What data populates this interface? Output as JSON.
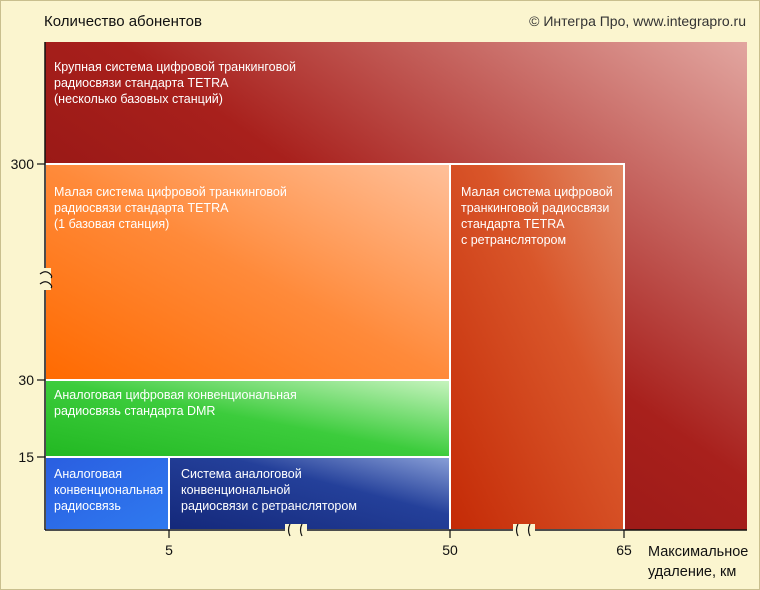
{
  "header": {
    "title": "Количество абонентов",
    "copyright": "© Интегра Про, www.integrapro.ru"
  },
  "colors": {
    "background": "#fbf5cf",
    "large_tetra": "#9e1212",
    "small_tetra": "#ff7a20",
    "tetra_repeater": "#cc3a10",
    "dmr": "#33c233",
    "analog_conventional": "#2b60d8",
    "analog_repeater": "#1e3590"
  },
  "chart_data": {
    "type": "area",
    "title": "Количество абонентов",
    "xlabel": "Максимальное удаление, км",
    "ylabel": "Количество абонентов",
    "x_ticks": [
      "5",
      "50",
      "65"
    ],
    "y_ticks": [
      "15",
      "30",
      "300"
    ],
    "axis_breaks": {
      "x": [
        "5-50",
        "50-65"
      ],
      "y": [
        "30-300"
      ]
    },
    "regions": [
      {
        "name": "large_tetra",
        "x_range": [
          0,
          null
        ],
        "y_range": [
          0,
          null
        ],
        "lines": [
          "Крупная система цифровой транкинговой",
          "радиосвязи стандарта TETRA",
          "(несколько базовых станций)"
        ]
      },
      {
        "name": "small_tetra",
        "x_range": [
          0,
          50
        ],
        "y_range": [
          30,
          300
        ],
        "lines": [
          "Малая система цифровой транкинговой",
          "радиосвязи стандарта TETRA",
          "(1 базовая станция)"
        ]
      },
      {
        "name": "tetra_repeater",
        "x_range": [
          50,
          65
        ],
        "y_range": [
          0,
          300
        ],
        "lines": [
          "Малая система цифровой",
          "транкинговой радиосвязи",
          "стандарта TETRA",
          "с ретранслятором"
        ]
      },
      {
        "name": "dmr",
        "x_range": [
          0,
          50
        ],
        "y_range": [
          15,
          30
        ],
        "lines": [
          "Аналоговая цифровая конвенциональная",
          "радиосвязь стандарта DMR"
        ]
      },
      {
        "name": "analog_conventional",
        "x_range": [
          0,
          5
        ],
        "y_range": [
          0,
          15
        ],
        "lines": [
          "Аналоговая",
          "конвенциональная",
          "радиосвязь"
        ]
      },
      {
        "name": "analog_repeater",
        "x_range": [
          5,
          50
        ],
        "y_range": [
          0,
          15
        ],
        "lines": [
          "Система аналоговой",
          "конвенциональной",
          "радиосвязи с ретранслятором"
        ]
      }
    ]
  }
}
